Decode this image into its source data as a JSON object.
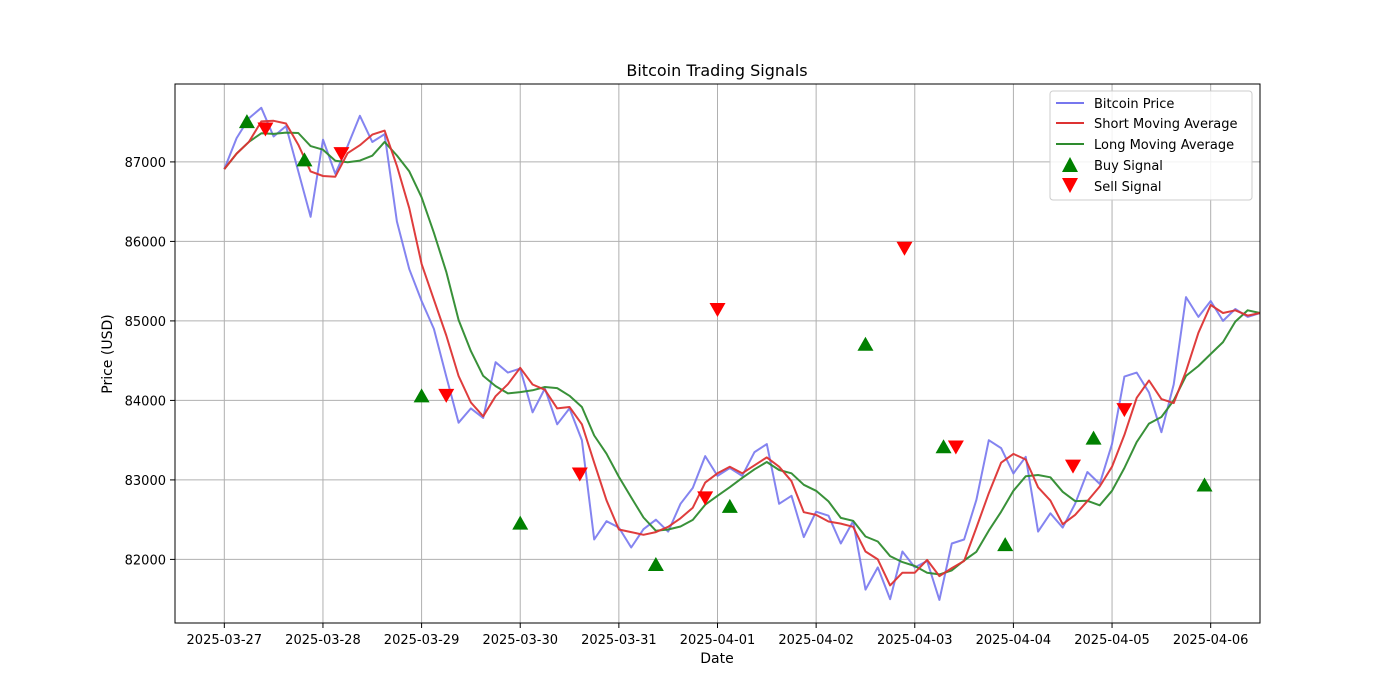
{
  "chart_data": {
    "type": "line",
    "title": "Bitcoin Trading Signals",
    "xlabel": "Date",
    "ylabel": "Price (USD)",
    "x_axis_type": "date",
    "xlim": [
      "2025-03-26 12:00",
      "2025-04-06 12:00"
    ],
    "ylim": [
      81200,
      87980
    ],
    "grid": true,
    "legend_position": "top-right",
    "x_ticks": [
      "2025-03-27",
      "2025-03-28",
      "2025-03-29",
      "2025-03-30",
      "2025-03-31",
      "2025-04-01",
      "2025-04-02",
      "2025-04-03",
      "2025-04-04",
      "2025-04-05",
      "2025-04-06"
    ],
    "y_ticks": [
      82000,
      83000,
      84000,
      85000,
      86000,
      87000
    ],
    "series": [
      {
        "name": "Bitcoin Price",
        "color": "#7777ee",
        "kind": "line",
        "points": [
          [
            "2025-03-27 00:00",
            86910
          ],
          [
            "2025-03-27 03:00",
            87300
          ],
          [
            "2025-03-27 06:00",
            87550
          ],
          [
            "2025-03-27 09:00",
            87680
          ],
          [
            "2025-03-27 12:00",
            87320
          ],
          [
            "2025-03-27 15:00",
            87450
          ],
          [
            "2025-03-27 18:00",
            86880
          ],
          [
            "2025-03-27 21:00",
            86310
          ],
          [
            "2025-03-28 00:00",
            87280
          ],
          [
            "2025-03-28 03:00",
            86850
          ],
          [
            "2025-03-28 06:00",
            87200
          ],
          [
            "2025-03-28 09:00",
            87580
          ],
          [
            "2025-03-28 12:00",
            87250
          ],
          [
            "2025-03-28 15:00",
            87350
          ],
          [
            "2025-03-28 18:00",
            86250
          ],
          [
            "2025-03-28 21:00",
            85650
          ],
          [
            "2025-03-29 00:00",
            85250
          ],
          [
            "2025-03-29 03:00",
            84900
          ],
          [
            "2025-03-29 06:00",
            84300
          ],
          [
            "2025-03-29 09:00",
            83720
          ],
          [
            "2025-03-29 12:00",
            83900
          ],
          [
            "2025-03-29 15:00",
            83780
          ],
          [
            "2025-03-29 18:00",
            84480
          ],
          [
            "2025-03-29 21:00",
            84350
          ],
          [
            "2025-03-30 00:00",
            84400
          ],
          [
            "2025-03-30 03:00",
            83850
          ],
          [
            "2025-03-30 06:00",
            84150
          ],
          [
            "2025-03-30 09:00",
            83700
          ],
          [
            "2025-03-30 12:00",
            83900
          ],
          [
            "2025-03-30 15:00",
            83500
          ],
          [
            "2025-03-30 18:00",
            82250
          ],
          [
            "2025-03-30 21:00",
            82480
          ],
          [
            "2025-03-31 00:00",
            82400
          ],
          [
            "2025-03-31 03:00",
            82150
          ],
          [
            "2025-03-31 06:00",
            82380
          ],
          [
            "2025-03-31 09:00",
            82500
          ],
          [
            "2025-03-31 12:00",
            82350
          ],
          [
            "2025-03-31 15:00",
            82700
          ],
          [
            "2025-03-31 18:00",
            82900
          ],
          [
            "2025-03-31 21:00",
            83300
          ],
          [
            "2025-04-01 00:00",
            83050
          ],
          [
            "2025-04-01 03:00",
            83150
          ],
          [
            "2025-04-01 06:00",
            83050
          ],
          [
            "2025-04-01 09:00",
            83350
          ],
          [
            "2025-04-01 12:00",
            83450
          ],
          [
            "2025-04-01 15:00",
            82700
          ],
          [
            "2025-04-01 18:00",
            82800
          ],
          [
            "2025-04-01 21:00",
            82280
          ],
          [
            "2025-04-02 00:00",
            82600
          ],
          [
            "2025-04-02 03:00",
            82550
          ],
          [
            "2025-04-02 06:00",
            82200
          ],
          [
            "2025-04-02 09:00",
            82480
          ],
          [
            "2025-04-02 12:00",
            81620
          ],
          [
            "2025-04-02 15:00",
            81900
          ],
          [
            "2025-04-02 18:00",
            81500
          ],
          [
            "2025-04-02 21:00",
            82100
          ],
          [
            "2025-04-03 00:00",
            81900
          ],
          [
            "2025-04-03 03:00",
            81980
          ],
          [
            "2025-04-03 06:00",
            81490
          ],
          [
            "2025-04-03 09:00",
            82200
          ],
          [
            "2025-04-03 12:00",
            82250
          ],
          [
            "2025-04-03 15:00",
            82750
          ],
          [
            "2025-04-03 18:00",
            83500
          ],
          [
            "2025-04-03 21:00",
            83400
          ],
          [
            "2025-04-04 00:00",
            83080
          ],
          [
            "2025-04-04 03:00",
            83290
          ],
          [
            "2025-04-04 06:00",
            82350
          ],
          [
            "2025-04-04 09:00",
            82580
          ],
          [
            "2025-04-04 12:00",
            82400
          ],
          [
            "2025-04-04 15:00",
            82700
          ],
          [
            "2025-04-04 18:00",
            83100
          ],
          [
            "2025-04-04 21:00",
            82950
          ],
          [
            "2025-04-05 00:00",
            83450
          ],
          [
            "2025-04-05 03:00",
            84300
          ],
          [
            "2025-04-05 06:00",
            84350
          ],
          [
            "2025-04-05 09:00",
            84100
          ],
          [
            "2025-04-05 12:00",
            83600
          ],
          [
            "2025-04-05 15:00",
            84200
          ],
          [
            "2025-04-05 18:00",
            85300
          ],
          [
            "2025-04-05 21:00",
            85050
          ],
          [
            "2025-04-06 00:00",
            85250
          ],
          [
            "2025-04-06 03:00",
            85000
          ],
          [
            "2025-04-06 06:00",
            85150
          ],
          [
            "2025-04-06 09:00",
            85050
          ],
          [
            "2025-04-06 12:00",
            85100
          ]
        ]
      },
      {
        "name": "Short Moving Average",
        "color": "#dd3333",
        "kind": "line",
        "points": []
      },
      {
        "name": "Long Moving Average",
        "color": "#2e8b2e",
        "kind": "line",
        "points": []
      },
      {
        "name": "Buy Signal",
        "color": "#008000",
        "kind": "marker-up",
        "points": [
          [
            "2025-03-27 05:30",
            87500
          ],
          [
            "2025-03-27 19:30",
            87020
          ],
          [
            "2025-03-29 00:00",
            84050
          ],
          [
            "2025-03-30 00:00",
            82450
          ],
          [
            "2025-03-31 09:00",
            81930
          ],
          [
            "2025-04-01 03:00",
            82660
          ],
          [
            "2025-04-02 12:00",
            84700
          ],
          [
            "2025-04-03 07:00",
            83410
          ],
          [
            "2025-04-03 22:00",
            82180
          ],
          [
            "2025-04-04 19:30",
            83520
          ],
          [
            "2025-04-05 22:30",
            82930
          ]
        ]
      },
      {
        "name": "Sell Signal",
        "color": "#ff0000",
        "kind": "marker-down",
        "points": [
          [
            "2025-03-27 10:00",
            87420
          ],
          [
            "2025-03-28 04:30",
            87110
          ],
          [
            "2025-03-29 06:00",
            84070
          ],
          [
            "2025-03-30 14:30",
            83080
          ],
          [
            "2025-03-31 21:00",
            82780
          ],
          [
            "2025-04-01 00:00",
            85150
          ],
          [
            "2025-04-02 21:30",
            85920
          ],
          [
            "2025-04-03 10:00",
            83420
          ],
          [
            "2025-04-04 14:30",
            83180
          ],
          [
            "2025-04-05 03:00",
            83890
          ]
        ]
      }
    ]
  }
}
